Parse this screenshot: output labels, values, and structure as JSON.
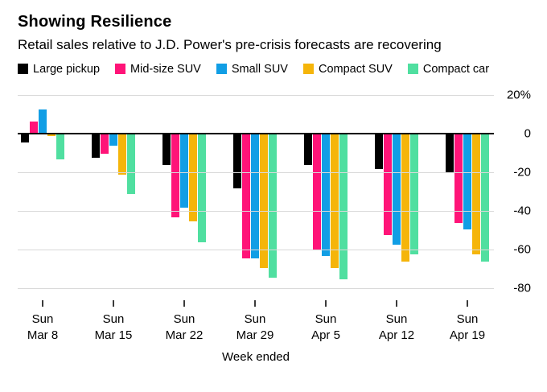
{
  "header": {
    "title": "Showing Resilience",
    "subtitle": "Retail sales relative to J.D. Power's pre-crisis forecasts are recovering"
  },
  "chart_data": {
    "type": "bar",
    "title": "Showing Resilience",
    "subtitle": "Retail sales relative to J.D. Power's pre-crisis forecasts are recovering",
    "xlabel": "Week ended",
    "ylabel": "",
    "grid": true,
    "legend_position": "top",
    "ylim": [
      -80,
      20
    ],
    "y_ticks": [
      20,
      0,
      -20,
      -40,
      -60,
      -80
    ],
    "y_tick_labels": [
      "20%",
      "0",
      "-20",
      "-40",
      "-60",
      "-80"
    ],
    "categories": [
      {
        "day": "Sun",
        "date": "Mar 8"
      },
      {
        "day": "Sun",
        "date": "Mar 15"
      },
      {
        "day": "Sun",
        "date": "Mar 22"
      },
      {
        "day": "Sun",
        "date": "Mar 29"
      },
      {
        "day": "Sun",
        "date": "Apr 5"
      },
      {
        "day": "Sun",
        "date": "Apr 12"
      },
      {
        "day": "Sun",
        "date": "Apr 19"
      }
    ],
    "series": [
      {
        "name": "Large pickup",
        "color": "#000000",
        "values": [
          -4,
          -12,
          -16,
          -28,
          -16,
          -18,
          -20
        ]
      },
      {
        "name": "Mid-size SUV",
        "color": "#ff1478",
        "values": [
          6,
          -10,
          -43,
          -64,
          -60,
          -52,
          -46
        ]
      },
      {
        "name": "Small SUV",
        "color": "#119ee5",
        "values": [
          12,
          -6,
          -38,
          -64,
          -63,
          -57,
          -49
        ]
      },
      {
        "name": "Compact SUV",
        "color": "#f5b50a",
        "values": [
          -1,
          -21,
          -45,
          -69,
          -69,
          -66,
          -62
        ]
      },
      {
        "name": "Compact car",
        "color": "#50dfa0",
        "values": [
          -13,
          -31,
          -56,
          -74,
          -75,
          -62,
          -66
        ]
      }
    ]
  }
}
